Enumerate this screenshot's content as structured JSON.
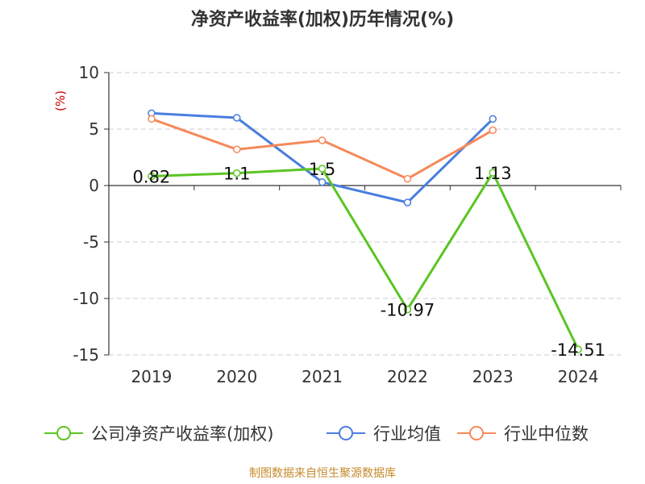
{
  "chart_data": {
    "type": "line",
    "title": "净资产收益率(加权)历年情况(%)",
    "ylabel": "(%)",
    "x": [
      "2019",
      "2020",
      "2021",
      "2022",
      "2023",
      "2024"
    ],
    "ylim": [
      -15,
      10
    ],
    "yticks": [
      10,
      5,
      0,
      -5,
      -10,
      -15
    ],
    "grid": true,
    "legend_position": "bottom",
    "series": [
      {
        "name": "公司净资产收益率(加权)",
        "color": "#5bc522",
        "values": [
          0.82,
          1.1,
          1.5,
          -10.97,
          1.13,
          -14.51
        ],
        "labels": [
          "0.82",
          "1.1",
          "1.5",
          "-10.97",
          "1.13",
          "-14.51"
        ]
      },
      {
        "name": "行业均值",
        "color": "#4a7ede",
        "values": [
          6.4,
          6.0,
          0.3,
          -1.5,
          5.9,
          null
        ]
      },
      {
        "name": "行业中位数",
        "color": "#f58a5a",
        "values": [
          5.9,
          3.2,
          4.0,
          0.6,
          4.9,
          null
        ]
      }
    ]
  },
  "source": "制图数据来自恒生聚源数据库"
}
